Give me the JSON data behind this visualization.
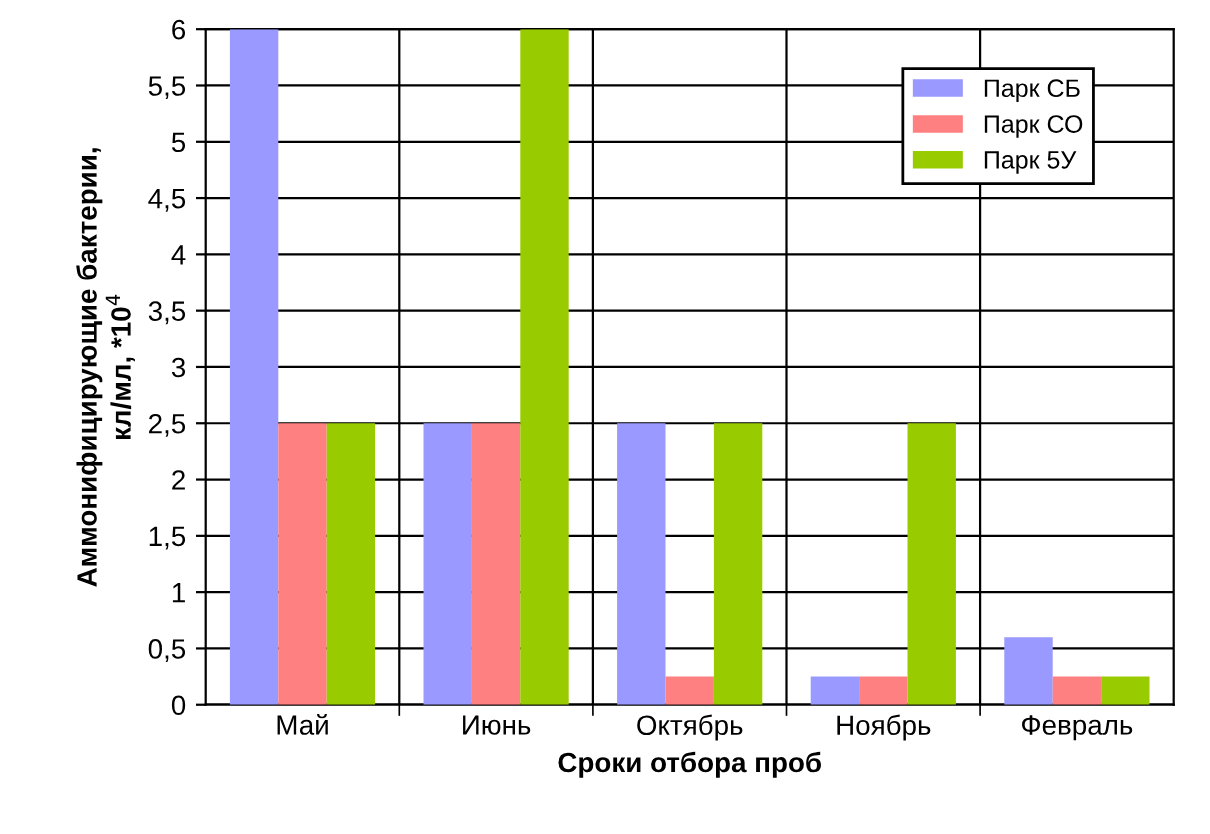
{
  "chart_data": {
    "type": "bar",
    "xlabel": "Сроки отбора проб",
    "ylabel": "Аммонифицирующие бактерии,\nкл/мл, *10$^{4}$",
    "categories": [
      "Май",
      "Июнь",
      "Октябрь",
      "Ноябрь",
      "Февраль"
    ],
    "series": [
      {
        "name": "Парк СБ",
        "color": "#9999ff",
        "values": [
          6,
          2.5,
          2.5,
          0.25,
          0.6
        ]
      },
      {
        "name": "Парк СО",
        "color": "#ff8080",
        "values": [
          2.5,
          2.5,
          0.25,
          0.25,
          0.25
        ]
      },
      {
        "name": "Парк 5У",
        "color": "#99cc00",
        "values": [
          2.5,
          6,
          2.5,
          2.5,
          0.25
        ]
      }
    ],
    "ylim": [
      0,
      6
    ],
    "yticks": [
      0,
      {
        "value": 0.5,
        "label": "0,5"
      },
      1,
      {
        "value": 1.5,
        "label": "1,5"
      },
      2,
      {
        "value": 2.5,
        "label": "2,5"
      },
      3,
      {
        "value": 3.5,
        "label": "3,5"
      },
      4,
      {
        "value": 4.5,
        "label": "4,5"
      },
      5,
      {
        "value": 5.5,
        "label": "5,5"
      },
      6
    ],
    "grid": true,
    "legend": "top right"
  }
}
